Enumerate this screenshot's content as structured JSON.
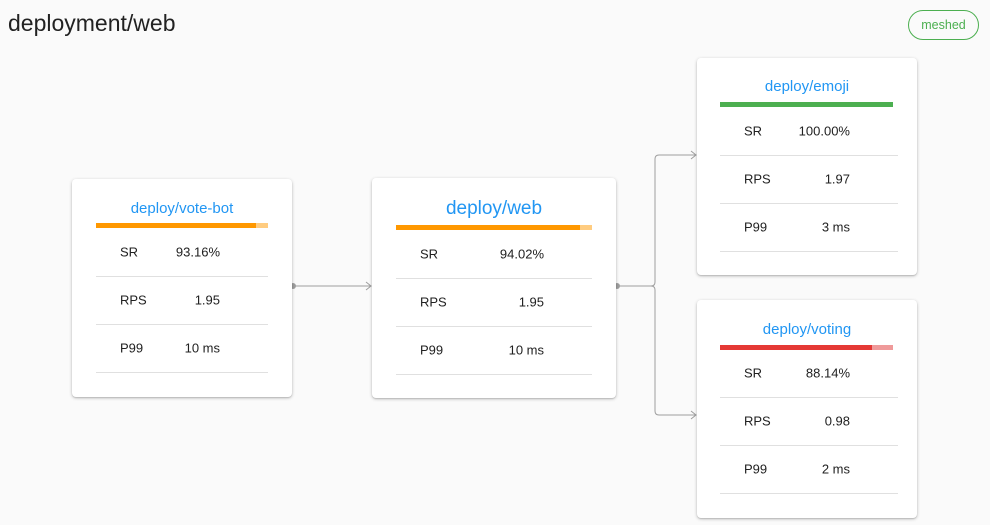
{
  "header": {
    "title": "deployment/web",
    "badge": "meshed"
  },
  "colors": {
    "link": "#2196f3",
    "warning": "#ff9800",
    "success": "#4caf50",
    "danger": "#e53935"
  },
  "nodes": [
    {
      "id": "vote-bot",
      "name": "deploy/vote-bot",
      "sr": "93.16%",
      "rps": "1.95",
      "p99": "10 ms",
      "success_fraction": 0.9316,
      "color": "#ff9800",
      "track": "#ffcc80"
    },
    {
      "id": "web",
      "name": "deploy/web",
      "sr": "94.02%",
      "rps": "1.95",
      "p99": "10 ms",
      "success_fraction": 0.9402,
      "color": "#ff9800",
      "track": "#ffcc80"
    },
    {
      "id": "emoji",
      "name": "deploy/emoji",
      "sr": "100.00%",
      "rps": "1.97",
      "p99": "3 ms",
      "success_fraction": 1.0,
      "color": "#4caf50",
      "track": "#a5d6a7"
    },
    {
      "id": "voting",
      "name": "deploy/voting",
      "sr": "88.14%",
      "rps": "0.98",
      "p99": "2 ms",
      "success_fraction": 0.8814,
      "color": "#e53935",
      "track": "#ef9a9a"
    }
  ],
  "labels": {
    "sr": "SR",
    "rps": "RPS",
    "p99": "P99"
  }
}
